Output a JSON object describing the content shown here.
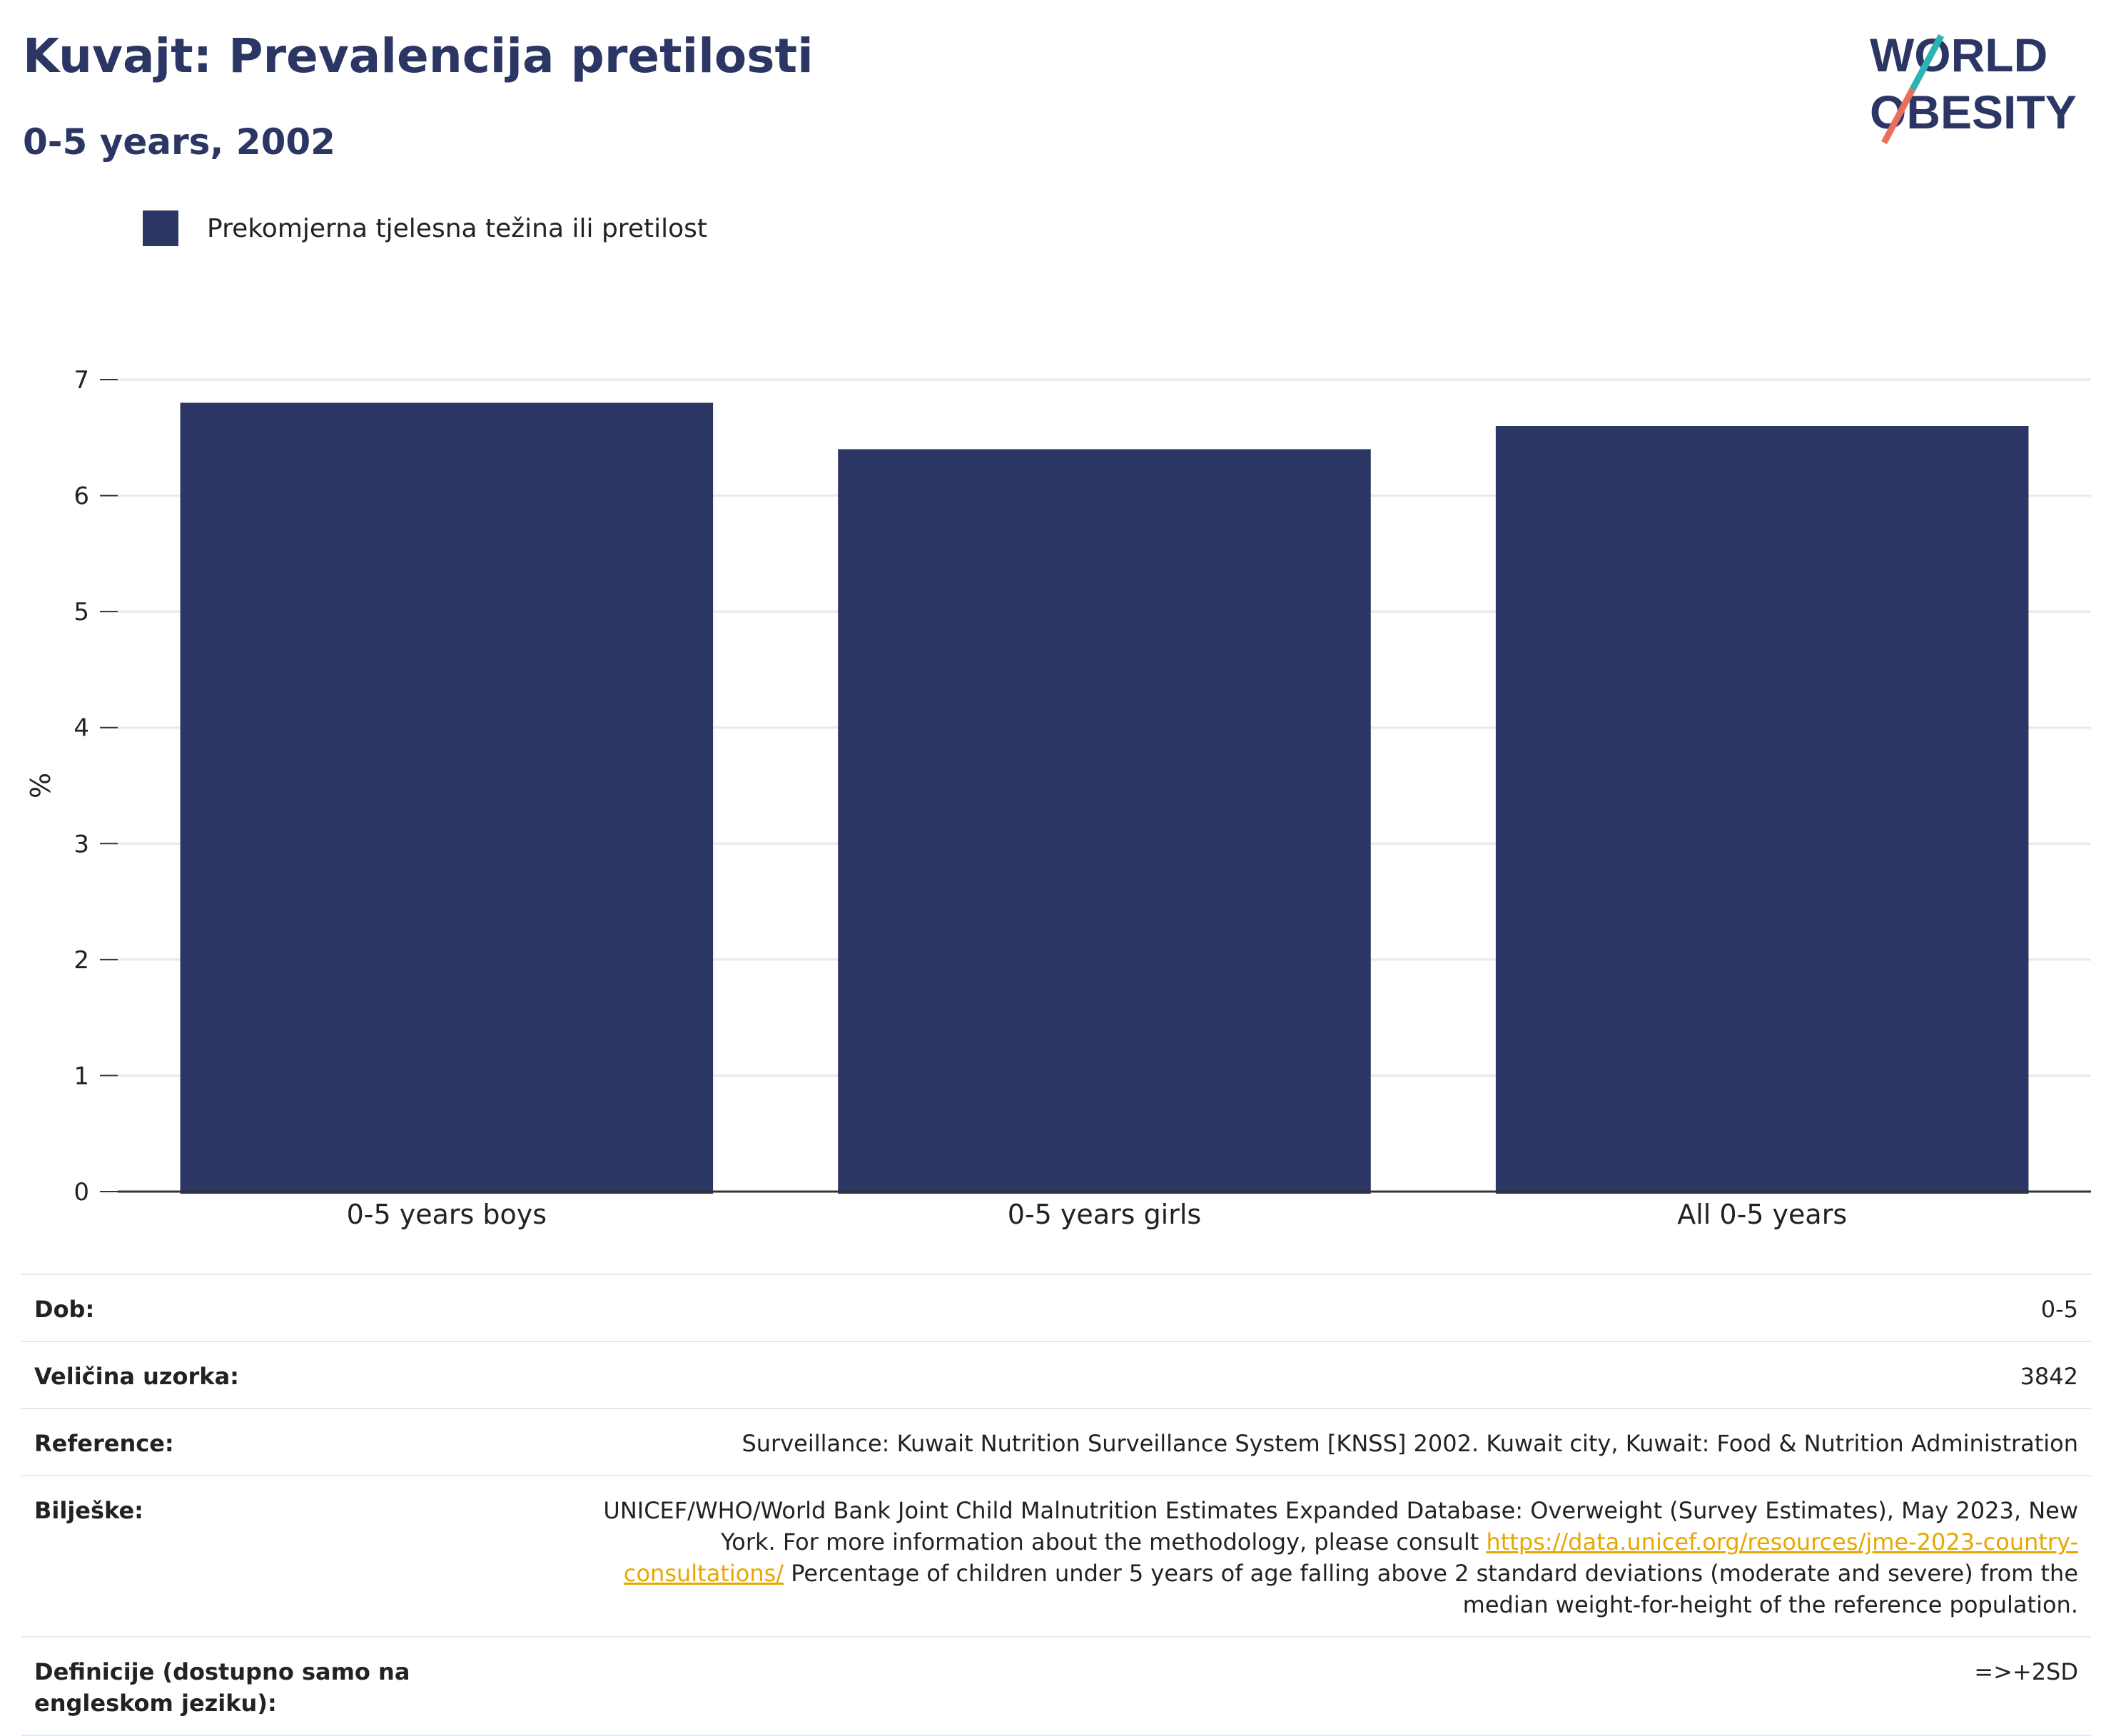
{
  "header": {
    "title": "Kuvajt: Prevalencija pretilosti",
    "subtitle": "0-5 years, 2002"
  },
  "logo": {
    "line1": "WORLD",
    "line2": "OBESITY"
  },
  "colors": {
    "bar": "#2b3664",
    "title": "#2b3664",
    "accent_teal": "#2ab5b5",
    "accent_coral": "#e8705a",
    "link": "#e8a600"
  },
  "chart_data": {
    "type": "bar",
    "categories": [
      "0-5 years boys",
      "0-5 years girls",
      "All 0-5 years"
    ],
    "series": [
      {
        "name": "Prekomjerna tjelesna težina ili pretilost",
        "values": [
          6.8,
          6.4,
          6.6
        ]
      }
    ],
    "ylabel": "%",
    "ylim": [
      0,
      7
    ],
    "yticks": [
      0,
      1,
      2,
      3,
      4,
      5,
      6,
      7
    ],
    "grid": true,
    "legend": "top-left"
  },
  "info": {
    "age_label": "Dob:",
    "age_value": "0-5",
    "sample_label": "Veličina uzorka:",
    "sample_value": "3842",
    "ref_label": "Reference:",
    "ref_value": "Surveillance: Kuwait Nutrition Surveillance System [KNSS] 2002. Kuwait city, Kuwait: Food & Nutrition Administration",
    "notes_label": "Bilješke:",
    "notes_text1": "UNICEF/WHO/World Bank Joint Child Malnutrition Estimates Expanded Database: Overweight (Survey Estimates), May 2023, New York. For more information about the methodology, please consult ",
    "notes_link": "https://data.unicef.org/resources/jme-2023-country-consultations/",
    "notes_text2": "Percentage of children under 5 years of age falling above 2 standard deviations (moderate and severe) from the median weight-for-height of the reference population.",
    "def_label": "Definicije (dostupno samo na engleskom jeziku):",
    "def_value": "=>+2SD"
  }
}
